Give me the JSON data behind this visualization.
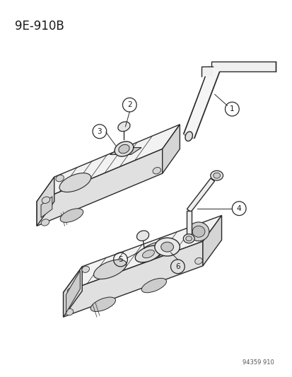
{
  "title": "9E-910B",
  "watermark": "94359 910",
  "bg_color": "#ffffff",
  "line_color": "#2a2a2a",
  "label_color": "#1a1a1a",
  "fig_w": 4.14,
  "fig_h": 5.33,
  "dpi": 100
}
